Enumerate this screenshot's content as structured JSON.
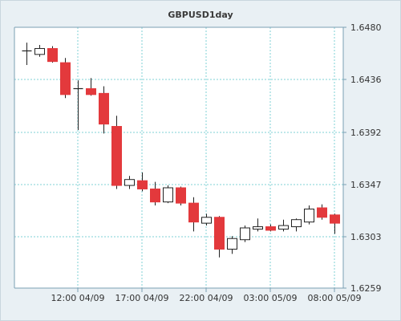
{
  "chart_data": {
    "type": "candlestick",
    "title": "GBPUSD1day",
    "y_axis": {
      "position": "right",
      "ticks": [
        "1.6480",
        "1.6436",
        "1.6392",
        "1.6347",
        "1.6303",
        "1.6259"
      ],
      "ylim": [
        1.6259,
        1.648
      ]
    },
    "x_axis": {
      "ticks": [
        "12:00 04/09",
        "17:00 04/09",
        "22:00 04/09",
        "03:00 05/09",
        "08:00 05/09"
      ]
    },
    "grid": true,
    "candles": [
      {
        "open": 1.646,
        "high": 1.6467,
        "low": 1.6448,
        "close": 1.646
      },
      {
        "open": 1.6457,
        "high": 1.6465,
        "low": 1.6455,
        "close": 1.6462
      },
      {
        "open": 1.6462,
        "high": 1.6464,
        "low": 1.645,
        "close": 1.6451
      },
      {
        "open": 1.645,
        "high": 1.6454,
        "low": 1.642,
        "close": 1.6423
      },
      {
        "open": 1.6428,
        "high": 1.6435,
        "low": 1.6393,
        "close": 1.6428
      },
      {
        "open": 1.6428,
        "high": 1.6437,
        "low": 1.6422,
        "close": 1.6423
      },
      {
        "open": 1.6424,
        "high": 1.643,
        "low": 1.639,
        "close": 1.6398
      },
      {
        "open": 1.6396,
        "high": 1.6405,
        "low": 1.6343,
        "close": 1.6346
      },
      {
        "open": 1.6346,
        "high": 1.6354,
        "low": 1.6343,
        "close": 1.6351
      },
      {
        "open": 1.635,
        "high": 1.6357,
        "low": 1.6341,
        "close": 1.6343
      },
      {
        "open": 1.6343,
        "high": 1.6349,
        "low": 1.6329,
        "close": 1.6332
      },
      {
        "open": 1.6332,
        "high": 1.6346,
        "low": 1.6331,
        "close": 1.6344
      },
      {
        "open": 1.6344,
        "high": 1.6345,
        "low": 1.6329,
        "close": 1.6331
      },
      {
        "open": 1.6331,
        "high": 1.6336,
        "low": 1.6307,
        "close": 1.6315
      },
      {
        "open": 1.6314,
        "high": 1.6322,
        "low": 1.6312,
        "close": 1.6319
      },
      {
        "open": 1.6319,
        "high": 1.632,
        "low": 1.6285,
        "close": 1.6292
      },
      {
        "open": 1.6292,
        "high": 1.6303,
        "low": 1.6288,
        "close": 1.6301
      },
      {
        "open": 1.63,
        "high": 1.6312,
        "low": 1.6298,
        "close": 1.631
      },
      {
        "open": 1.6309,
        "high": 1.6318,
        "low": 1.6307,
        "close": 1.6311
      },
      {
        "open": 1.6311,
        "high": 1.6313,
        "low": 1.6307,
        "close": 1.6308
      },
      {
        "open": 1.6309,
        "high": 1.6317,
        "low": 1.6307,
        "close": 1.6312
      },
      {
        "open": 1.6311,
        "high": 1.6318,
        "low": 1.6307,
        "close": 1.6317
      },
      {
        "open": 1.6315,
        "high": 1.6329,
        "low": 1.6313,
        "close": 1.6326
      },
      {
        "open": 1.6327,
        "high": 1.633,
        "low": 1.6317,
        "close": 1.6319
      },
      {
        "open": 1.6321,
        "high": 1.6322,
        "low": 1.6305,
        "close": 1.6314
      }
    ],
    "colors": {
      "bearish": "#e3393c",
      "bullish": "#ffffff",
      "outline": "#222222",
      "grid": "#7fd0d4",
      "axis": "#7a9fb3",
      "plot_bg": "#ffffff"
    }
  }
}
